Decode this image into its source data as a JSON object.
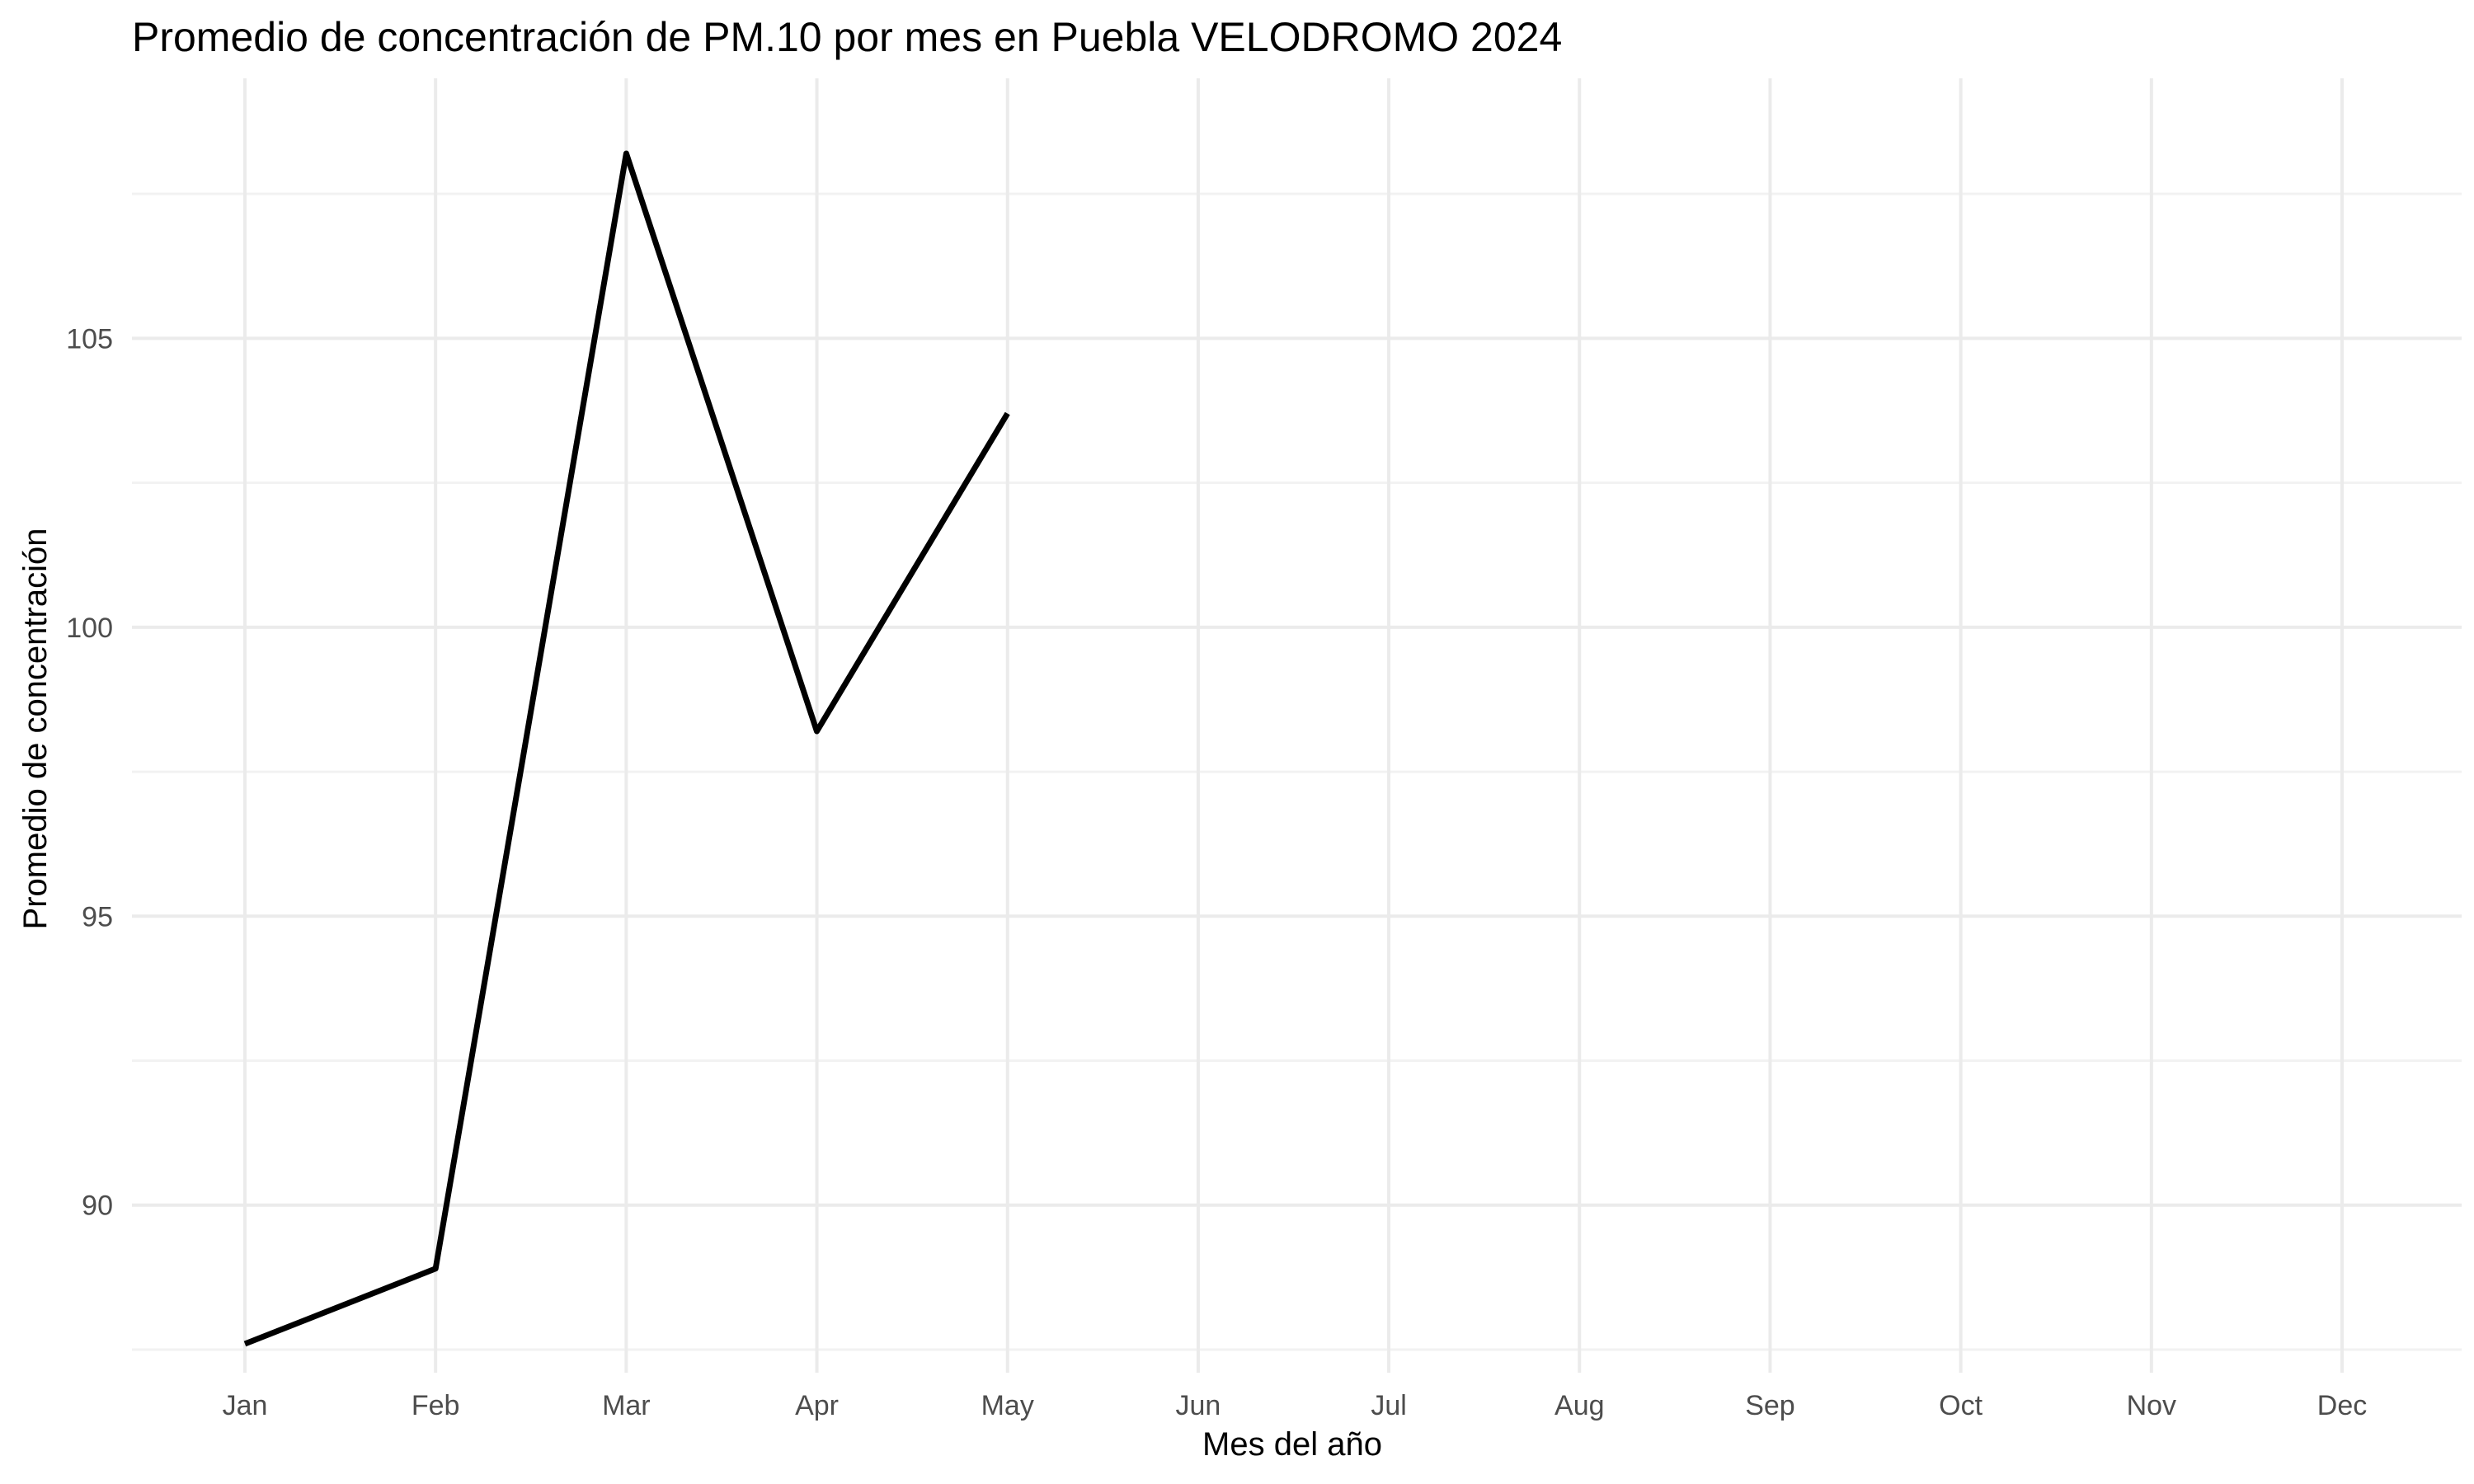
{
  "chart_data": {
    "type": "line",
    "title": "Promedio de concentración de PM.10 por mes en Puebla VELODROMO 2024",
    "xlabel": "Mes del año",
    "ylabel": "Promedio de concentración",
    "categories": [
      "Jan",
      "Feb",
      "Mar",
      "Apr",
      "May",
      "Jun",
      "Jul",
      "Aug",
      "Sep",
      "Oct",
      "Nov",
      "Dec"
    ],
    "y_ticks": [
      90,
      95,
      100,
      105
    ],
    "y_minor_ticks": [
      87.5,
      92.5,
      97.5,
      102.5,
      107.5
    ],
    "ylim": [
      87.1,
      109.5
    ],
    "series": [
      {
        "color": "#000000",
        "values": [
          87.6,
          88.9,
          108.2,
          98.2,
          103.7,
          null,
          null,
          null,
          null,
          null,
          null,
          null
        ]
      }
    ],
    "grid": true,
    "legend": "none"
  }
}
